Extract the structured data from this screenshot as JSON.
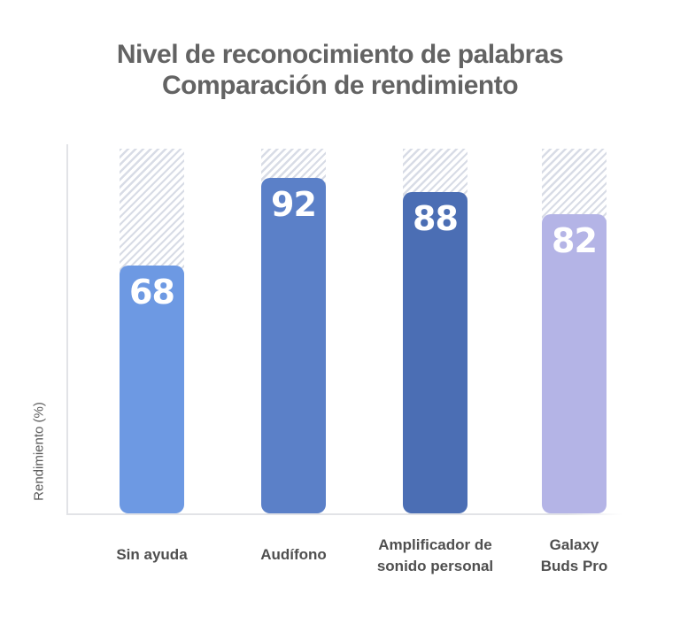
{
  "header": {
    "line1": "Nivel de reconocimiento de palabras",
    "line2": "Comparación de rendimiento"
  },
  "chart_data": {
    "type": "bar",
    "title": "Nivel de reconocimiento de palabras — Comparación de rendimiento",
    "categories": [
      "Sin ayuda",
      "Audífono",
      "Amplificador de sonido personal",
      "Galaxy Buds Pro"
    ],
    "category_lines": [
      [
        "Sin ayuda"
      ],
      [
        "Audífono"
      ],
      [
        "Amplificador de",
        "sonido personal"
      ],
      [
        "Galaxy",
        "Buds Pro"
      ]
    ],
    "values": [
      68,
      92,
      88,
      82
    ],
    "value_labels": [
      "68",
      "92",
      "88",
      "82"
    ],
    "bar_colors": [
      "#6d99e3",
      "#5b80c8",
      "#4b6eb4",
      "#b4b4e6"
    ],
    "xlabel": "",
    "ylabel": "Rendimiento (%)",
    "ylim": [
      0,
      100
    ],
    "hatch_to": 100,
    "grid": false,
    "legend": false
  },
  "colors": {
    "title_text": "#636363",
    "category_text": "#4f4f4f",
    "axis_line": "#e2e3e7",
    "hatch_stripe": "#d8dce6",
    "value_text": "#ffffff",
    "background": "#ffffff"
  }
}
